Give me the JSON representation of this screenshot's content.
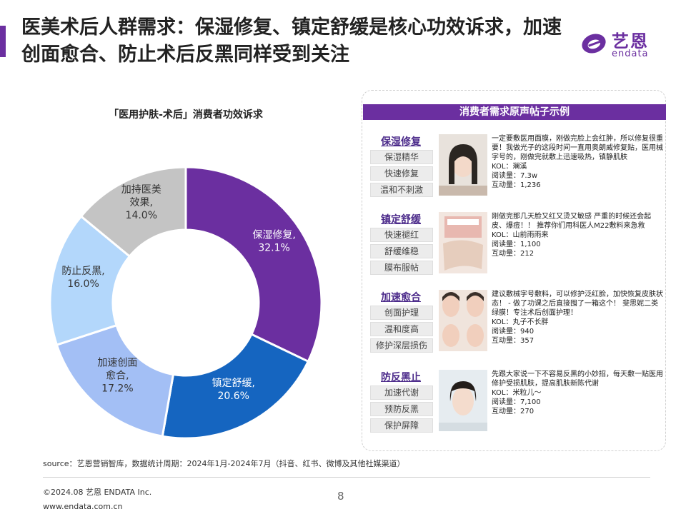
{
  "title": "医美术后人群需求：保湿修复、镇定舒缓是核心功效诉求，加速创面愈合、防止术后反黑同样受到关注",
  "logo": {
    "cn": "艺恩",
    "en": "endata"
  },
  "chart_data": {
    "type": "pie",
    "title": "「医用护肤-术后」消费者功效诉求",
    "labels": [
      "保湿修复,",
      "镇定舒缓,",
      "加速创面愈合,",
      "防止反黑,",
      "加持医美效果,"
    ],
    "values": [
      32.1,
      20.6,
      17.2,
      16.0,
      14.0
    ],
    "value_labels": [
      "32.1%",
      "20.6%",
      "17.2%",
      "16.0%",
      "14.0%"
    ],
    "colors": [
      "#6b2fa0",
      "#1565c0",
      "#a3bff5",
      "#b3d7fb",
      "#c4c4c4"
    ]
  },
  "panel": {
    "header": "消费者需求原声帖子示例",
    "groups": [
      {
        "title": "保湿修复",
        "tags": [
          "保湿精华",
          "快速修复",
          "温和不刺激"
        ],
        "post": [
          "一定要敷医用面膜，刚做完脸上会红肿，所以修复很重要！我做光子的这段时间一直用奥朗威修复贴，医用械字号的，刚做完就敷上迅速吸热，镇静肌肤",
          "KOL：斓溪",
          "阅读量：7.3w",
          "互动量：1,236"
        ]
      },
      {
        "title": "镇定舒缓",
        "tags": [
          "快速褪红",
          "舒缓维稳",
          "膜布服帖"
        ],
        "post": [
          "刚做完那几天脸又红又烫又敏感 严重的时候还会起皮、爆痘！！ 推荐你们用科医人M22敷料来急救",
          "KOL：山前雨雨来",
          "阅读量：1,100",
          "互动量：212"
        ]
      },
      {
        "title": "加速愈合",
        "tags": [
          "创面护理",
          "温和度高",
          "修护深层损伤"
        ],
        "post": [
          "建议敷械字号敷料，可以修护泛红脸，加快恢复皮肤状态！ - 做了功课之后直接囤了一箱这个！ 斐思妮二类绿膜！专注术后创面护理！",
          "KOL：丸子不长胖",
          "阅读量：940",
          "互动量：357"
        ]
      },
      {
        "title": "防反黑止",
        "tags": [
          "加速代谢",
          "预防反黑",
          "保护屏障"
        ],
        "post": [
          "先跟大家说一下不容易反黑的小妙招，每天敷一贴医用修护受损肌肤，提高肌肤新陈代谢",
          "KOL：米粒儿～",
          "阅读量：7,100",
          "互动量：270"
        ]
      }
    ]
  },
  "source": "source：艺恩营销智库，数据统计周期：2024年1月-2024年7月（抖音、红书、微博及其他社媒渠道）",
  "copyright": "©2024.08 艺恩 ENDATA Inc.",
  "website": "www.endata.com.cn",
  "page_number": "8"
}
